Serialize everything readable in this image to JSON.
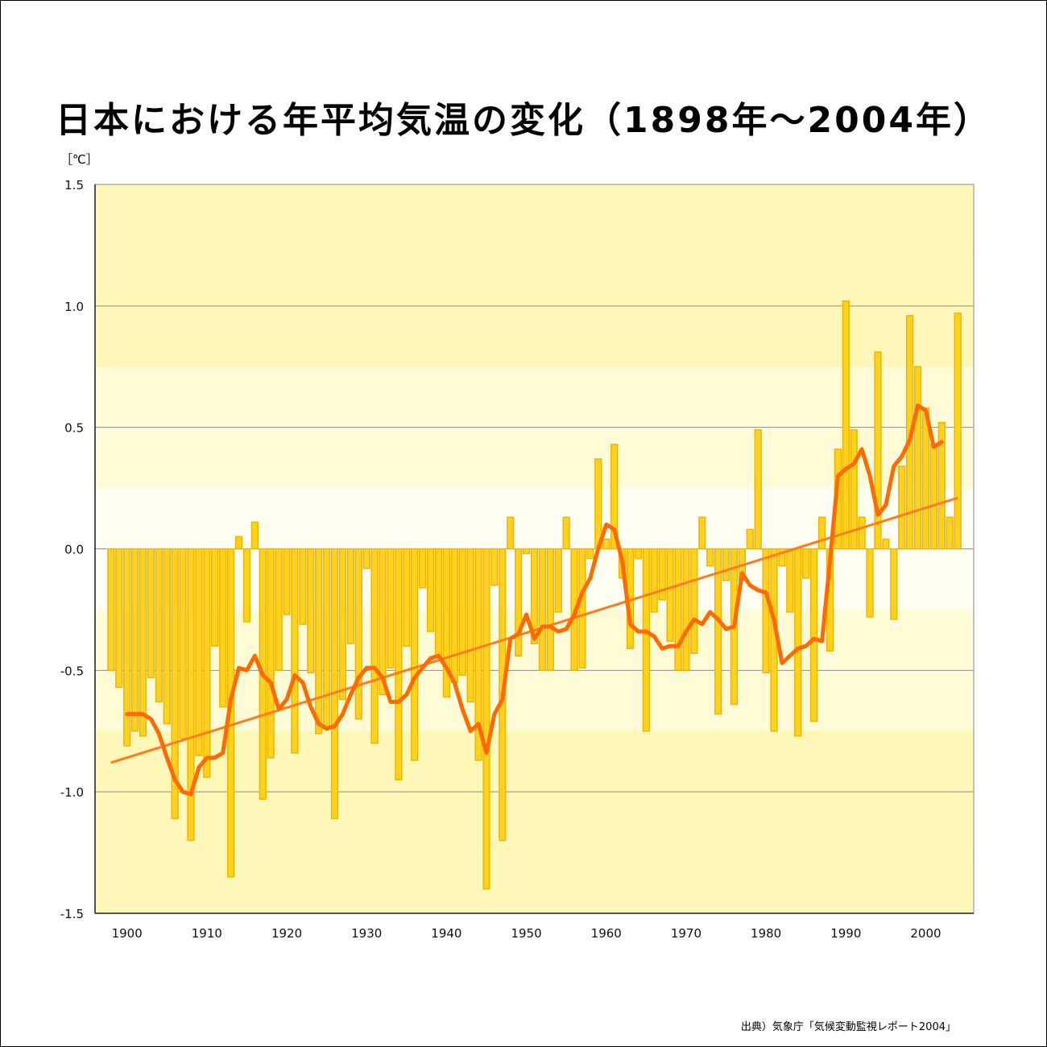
{
  "title": "日本における年平均気温の変化（1898年〜2004年）",
  "unit_label": "［℃］",
  "source": "出典）気象庁「気候変動監視レポート2004」",
  "colors": {
    "bar_fill": "#ffd21e",
    "bar_stroke": "#f2b400",
    "smooth_line": "#ff6a00",
    "trend_line": "#ff7b1c",
    "band_light": "#fffef0",
    "band_dark": "#fff7b8",
    "grid": "#8c8c8c"
  },
  "chart_data": {
    "type": "bar",
    "title": "日本における年平均気温の変化（1898年〜2004年）",
    "ylabel": "［℃］",
    "xlabel": "",
    "ylim": [
      -1.5,
      1.5
    ],
    "xlim": [
      1896,
      2006
    ],
    "x_ticks": [
      1900,
      1910,
      1920,
      1930,
      1940,
      1950,
      1960,
      1970,
      1980,
      1990,
      2000
    ],
    "y_ticks": [
      1.5,
      1.0,
      0.5,
      0.0,
      -0.5,
      -1.0,
      -1.5
    ],
    "y_tick_labels": [
      "1.5",
      "1.0",
      "0.5",
      "0.0",
      "-0.5",
      "-1.0",
      "-1.5"
    ],
    "grid": true,
    "years": [
      1898,
      1899,
      1900,
      1901,
      1902,
      1903,
      1904,
      1905,
      1906,
      1907,
      1908,
      1909,
      1910,
      1911,
      1912,
      1913,
      1914,
      1915,
      1916,
      1917,
      1918,
      1919,
      1920,
      1921,
      1922,
      1923,
      1924,
      1925,
      1926,
      1927,
      1928,
      1929,
      1930,
      1931,
      1932,
      1933,
      1934,
      1935,
      1936,
      1937,
      1938,
      1939,
      1940,
      1941,
      1942,
      1943,
      1944,
      1945,
      1946,
      1947,
      1948,
      1949,
      1950,
      1951,
      1952,
      1953,
      1954,
      1955,
      1956,
      1957,
      1958,
      1959,
      1960,
      1961,
      1962,
      1963,
      1964,
      1965,
      1966,
      1967,
      1968,
      1969,
      1970,
      1971,
      1972,
      1973,
      1974,
      1975,
      1976,
      1977,
      1978,
      1979,
      1980,
      1981,
      1982,
      1983,
      1984,
      1985,
      1986,
      1987,
      1988,
      1989,
      1990,
      1991,
      1992,
      1993,
      1994,
      1995,
      1996,
      1997,
      1998,
      1999,
      2000,
      2001,
      2002,
      2003,
      2004
    ],
    "series": [
      {
        "kind": "bar",
        "values": [
          -0.5,
          -0.57,
          -0.81,
          -0.75,
          -0.77,
          -0.53,
          -0.63,
          -0.72,
          -1.11,
          -0.78,
          -1.2,
          -0.85,
          -0.94,
          -0.4,
          -0.65,
          -1.35,
          0.05,
          -0.3,
          0.11,
          -1.03,
          -0.86,
          -0.5,
          -0.27,
          -0.84,
          -0.31,
          -0.51,
          -0.76,
          -0.74,
          -1.11,
          -0.62,
          -0.39,
          -0.7,
          -0.08,
          -0.8,
          -0.6,
          -0.49,
          -0.95,
          -0.4,
          -0.87,
          -0.16,
          -0.34,
          -0.45,
          -0.61,
          -0.55,
          -0.52,
          -0.63,
          -0.87,
          -1.4,
          -0.15,
          -1.2,
          0.13,
          -0.44,
          -0.02,
          -0.39,
          -0.5,
          -0.5,
          -0.26,
          0.13,
          -0.5,
          -0.49,
          -0.04,
          0.37,
          0.04,
          0.43,
          -0.12,
          -0.41,
          -0.04,
          -0.75,
          -0.26,
          -0.21,
          -0.38,
          -0.5,
          -0.5,
          -0.43,
          0.13,
          -0.07,
          -0.68,
          -0.13,
          -0.64,
          -0.13,
          0.08,
          0.49,
          -0.51,
          -0.75,
          -0.07,
          -0.26,
          -0.77,
          -0.12,
          -0.71,
          0.13,
          -0.42,
          0.41,
          1.02,
          0.49,
          0.13,
          -0.28,
          0.81,
          0.04,
          -0.29,
          0.34,
          0.96,
          0.75,
          0.58,
          0.43,
          0.52,
          0.13,
          0.97
        ]
      },
      {
        "kind": "line",
        "values": [
          null,
          null,
          -0.68,
          -0.68,
          -0.68,
          -0.7,
          -0.76,
          -0.86,
          -0.95,
          -1.0,
          -1.01,
          -0.9,
          -0.86,
          -0.86,
          -0.84,
          -0.62,
          -0.49,
          -0.5,
          -0.44,
          -0.52,
          -0.55,
          -0.66,
          -0.62,
          -0.52,
          -0.55,
          -0.65,
          -0.72,
          -0.74,
          -0.73,
          -0.68,
          -0.6,
          -0.53,
          -0.49,
          -0.49,
          -0.53,
          -0.63,
          -0.63,
          -0.6,
          -0.53,
          -0.49,
          -0.45,
          -0.44,
          -0.49,
          -0.55,
          -0.66,
          -0.75,
          -0.72,
          -0.84,
          -0.68,
          -0.62,
          -0.37,
          -0.35,
          -0.27,
          -0.37,
          -0.32,
          -0.32,
          -0.34,
          -0.33,
          -0.27,
          -0.18,
          -0.12,
          0.0,
          0.1,
          0.08,
          -0.05,
          -0.31,
          -0.34,
          -0.34,
          -0.36,
          -0.41,
          -0.4,
          -0.4,
          -0.34,
          -0.29,
          -0.31,
          -0.26,
          -0.29,
          -0.33,
          -0.32,
          -0.1,
          -0.15,
          -0.17,
          -0.18,
          -0.29,
          -0.47,
          -0.44,
          -0.41,
          -0.4,
          -0.37,
          -0.38,
          -0.05,
          0.3,
          0.33,
          0.35,
          0.41,
          0.3,
          0.14,
          0.18,
          0.34,
          0.38,
          0.45,
          0.59,
          0.57,
          0.42,
          0.44,
          null,
          null
        ]
      },
      {
        "kind": "trend",
        "x": [
          1898,
          2004
        ],
        "values": [
          -0.88,
          0.21
        ]
      }
    ]
  }
}
